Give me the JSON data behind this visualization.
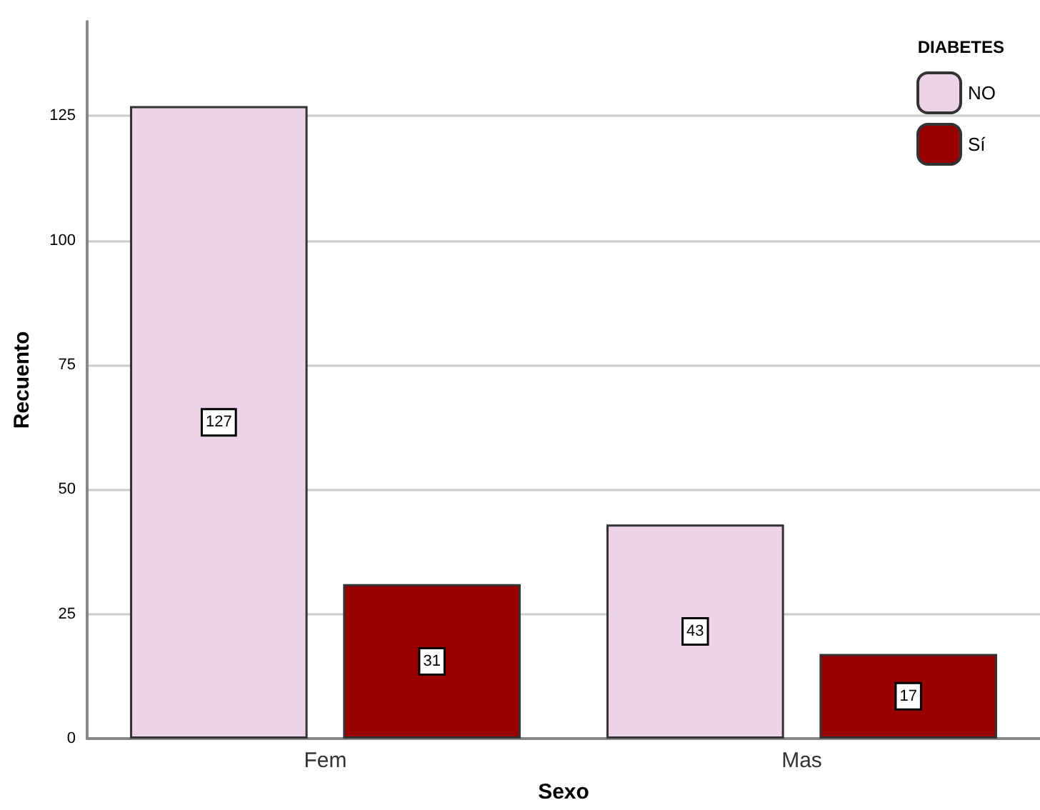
{
  "chart_data": {
    "type": "bar",
    "xlabel": "Sexo",
    "ylabel": "Recuento",
    "legend_title": "DIABETES",
    "categories": [
      "Fem",
      "Mas"
    ],
    "series": [
      {
        "name": "NO",
        "color": "#ecd3e8",
        "values": [
          127,
          43
        ]
      },
      {
        "name": "Sí",
        "color": "#990000",
        "values": [
          31,
          17
        ]
      }
    ],
    "ylim": [
      0,
      144
    ],
    "yticks": [
      0,
      25,
      50,
      75,
      100,
      125
    ],
    "grid": "y",
    "legend": "top right",
    "data_labels": true
  }
}
